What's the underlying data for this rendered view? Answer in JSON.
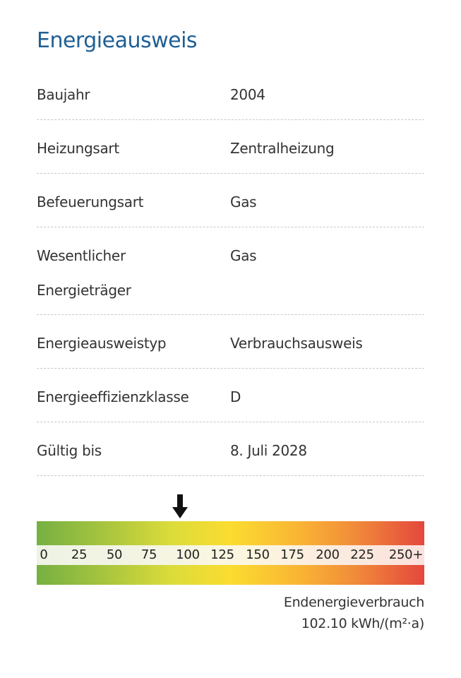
{
  "title": "Energieausweis",
  "rows": [
    {
      "label": "Baujahr",
      "value": "2004"
    },
    {
      "label": "Heizungsart",
      "value": "Zentralheizung"
    },
    {
      "label": "Befeuerungsart",
      "value": "Gas"
    },
    {
      "label": "Wesentlicher Energieträger",
      "label_line1": "Wesentlicher",
      "label_line2": "Energieträger",
      "value": "Gas"
    },
    {
      "label": "Energieausweistyp",
      "value": "Verbrauchsausweis"
    },
    {
      "label": "Energieeffizienzklasse",
      "value": "D"
    },
    {
      "label": "Gültig bis",
      "value": "8. Juli 2028"
    }
  ],
  "scale": {
    "ticks": [
      "0",
      "25",
      "50",
      "75",
      "100",
      "125",
      "150",
      "175",
      "200",
      "225",
      "250+"
    ],
    "indicator_value": 102.1,
    "colors": [
      "#76b043",
      "#fbdc30",
      "#e4473d"
    ]
  },
  "consumption": {
    "label": "Endenergieverbrauch",
    "value": "102.10 kWh/(m²·a)"
  }
}
